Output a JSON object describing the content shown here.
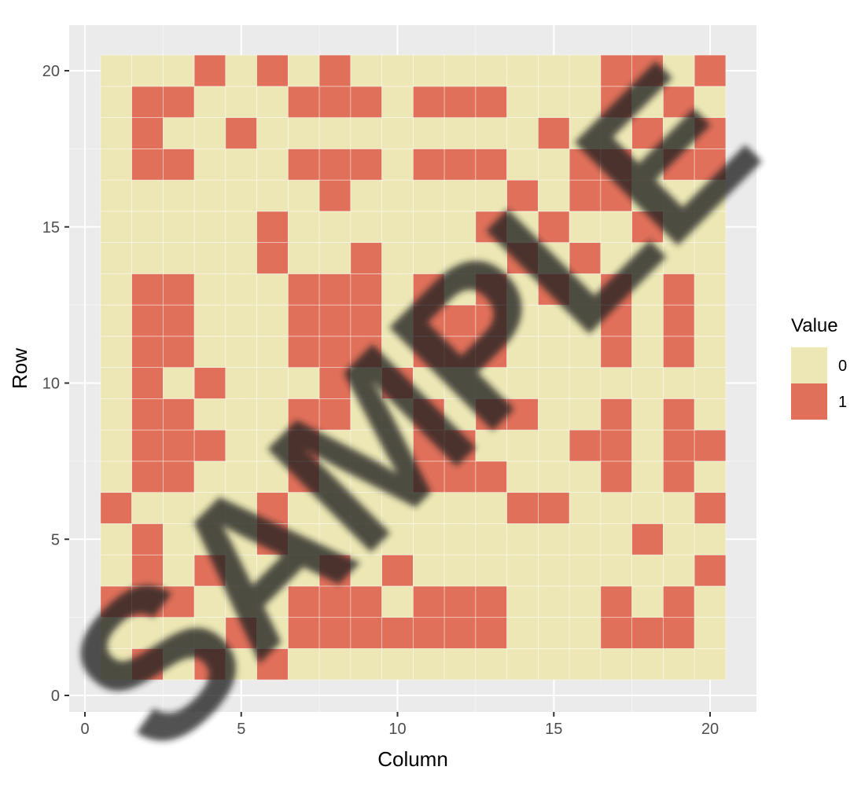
{
  "chart_data": {
    "type": "heatmap",
    "title": "",
    "xlabel": "Column",
    "ylabel": "Row",
    "xlim": [
      0,
      21
    ],
    "ylim": [
      0,
      21
    ],
    "x_ticks": [
      0,
      5,
      10,
      15,
      20
    ],
    "y_ticks": [
      0,
      5,
      10,
      15,
      20
    ],
    "legend": {
      "title": "Value",
      "position": "right",
      "entries": [
        {
          "label": "0",
          "color": "#ece7b4"
        },
        {
          "label": "1",
          "color": "#e0705a"
        }
      ]
    },
    "rows": {
      "1": [
        0,
        1,
        0,
        1,
        0,
        1,
        0,
        0,
        0,
        0,
        0,
        0,
        0,
        0,
        0,
        0,
        0,
        0,
        0,
        0
      ],
      "2": [
        0,
        0,
        0,
        0,
        1,
        0,
        1,
        1,
        1,
        1,
        1,
        1,
        1,
        0,
        0,
        0,
        1,
        1,
        1,
        0
      ],
      "3": [
        1,
        1,
        1,
        0,
        0,
        0,
        1,
        1,
        1,
        0,
        1,
        1,
        1,
        0,
        0,
        0,
        1,
        0,
        1,
        0
      ],
      "4": [
        0,
        1,
        0,
        1,
        0,
        0,
        0,
        1,
        0,
        1,
        0,
        0,
        0,
        0,
        0,
        0,
        0,
        0,
        0,
        1
      ],
      "5": [
        0,
        1,
        0,
        0,
        0,
        1,
        0,
        0,
        0,
        0,
        0,
        0,
        0,
        0,
        0,
        0,
        0,
        1,
        0,
        0
      ],
      "6": [
        1,
        0,
        0,
        0,
        0,
        1,
        0,
        0,
        0,
        0,
        0,
        0,
        0,
        1,
        1,
        0,
        0,
        0,
        0,
        1
      ],
      "7": [
        0,
        1,
        1,
        0,
        0,
        0,
        1,
        0,
        0,
        0,
        1,
        1,
        1,
        0,
        0,
        0,
        1,
        0,
        1,
        0
      ],
      "8": [
        0,
        1,
        1,
        1,
        0,
        0,
        1,
        0,
        0,
        0,
        1,
        1,
        0,
        0,
        0,
        1,
        1,
        0,
        1,
        1
      ],
      "9": [
        0,
        1,
        1,
        0,
        0,
        0,
        1,
        1,
        0,
        0,
        1,
        0,
        1,
        1,
        0,
        0,
        1,
        0,
        1,
        0
      ],
      "10": [
        0,
        1,
        0,
        1,
        0,
        0,
        0,
        1,
        0,
        1,
        0,
        0,
        0,
        0,
        0,
        0,
        0,
        0,
        0,
        0
      ],
      "11": [
        0,
        1,
        1,
        0,
        0,
        0,
        1,
        1,
        1,
        0,
        1,
        1,
        1,
        0,
        0,
        0,
        1,
        0,
        1,
        0
      ],
      "12": [
        0,
        1,
        1,
        0,
        0,
        0,
        1,
        1,
        1,
        0,
        1,
        1,
        1,
        0,
        0,
        0,
        1,
        0,
        1,
        0
      ],
      "13": [
        0,
        1,
        1,
        0,
        0,
        0,
        1,
        1,
        1,
        0,
        1,
        0,
        1,
        0,
        1,
        0,
        1,
        0,
        1,
        0
      ],
      "14": [
        0,
        0,
        0,
        0,
        0,
        1,
        0,
        0,
        1,
        0,
        0,
        0,
        0,
        1,
        0,
        1,
        0,
        0,
        0,
        0
      ],
      "15": [
        0,
        0,
        0,
        0,
        0,
        1,
        0,
        0,
        0,
        0,
        0,
        0,
        1,
        0,
        1,
        0,
        0,
        1,
        0,
        0
      ],
      "16": [
        0,
        0,
        0,
        0,
        0,
        0,
        0,
        1,
        0,
        0,
        0,
        0,
        0,
        1,
        0,
        1,
        1,
        0,
        0,
        0
      ],
      "17": [
        0,
        1,
        1,
        0,
        0,
        0,
        1,
        1,
        1,
        0,
        1,
        1,
        1,
        0,
        0,
        1,
        1,
        0,
        1,
        1
      ],
      "18": [
        0,
        1,
        0,
        0,
        1,
        0,
        0,
        0,
        0,
        0,
        0,
        0,
        0,
        0,
        1,
        0,
        0,
        1,
        0,
        1
      ],
      "19": [
        0,
        1,
        1,
        0,
        0,
        0,
        1,
        1,
        1,
        0,
        1,
        1,
        1,
        0,
        0,
        0,
        1,
        0,
        1,
        0
      ],
      "20": [
        0,
        0,
        0,
        1,
        0,
        1,
        0,
        1,
        0,
        0,
        0,
        0,
        0,
        0,
        0,
        0,
        1,
        1,
        0,
        1
      ]
    }
  },
  "watermark": {
    "text": "SAMPLE"
  }
}
